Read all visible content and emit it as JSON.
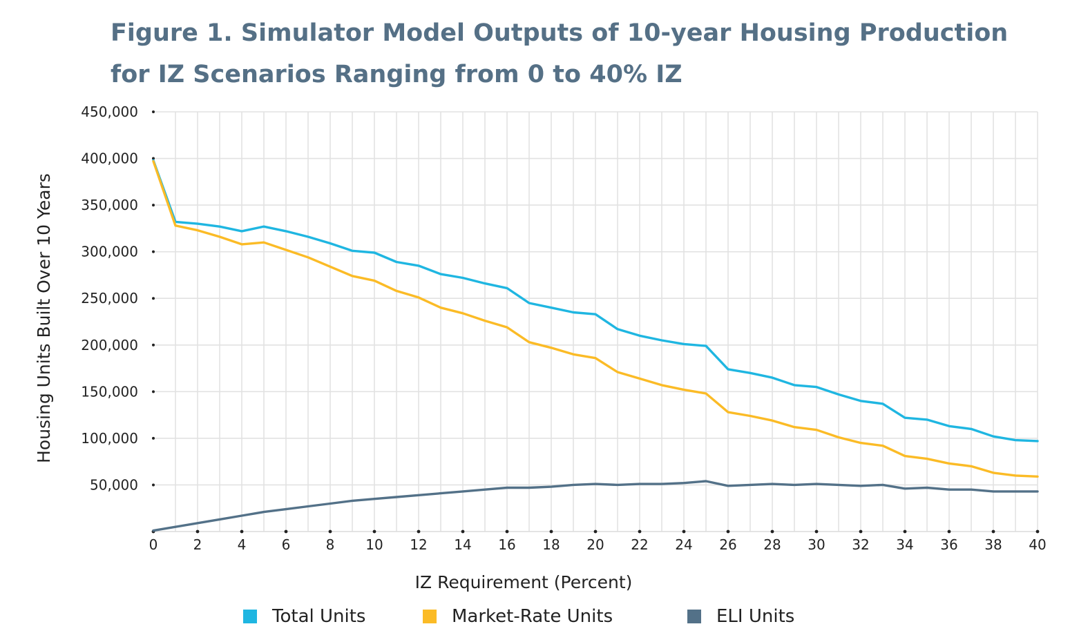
{
  "title": {
    "line1": "Figure 1. Simulator Model Outputs of 10-year Housing Production",
    "line2": "for IZ Scenarios Ranging from 0 to 40% IZ"
  },
  "chart_data": {
    "type": "line",
    "xlabel": "IZ Requirement (Percent)",
    "ylabel": "Housing Units  Built Over 10 Years",
    "xlim": [
      0,
      40
    ],
    "ylim": [
      0,
      450000
    ],
    "x_ticks": [
      0,
      2,
      4,
      6,
      8,
      10,
      12,
      14,
      16,
      18,
      20,
      22,
      24,
      26,
      28,
      30,
      32,
      34,
      36,
      38,
      40
    ],
    "x_tick_labels": [
      "0",
      "2",
      "4",
      "6",
      "8",
      "10",
      "12",
      "14",
      "16",
      "18",
      "20",
      "22",
      "24",
      "26",
      "28",
      "30",
      "32",
      "34",
      "36",
      "38",
      "40"
    ],
    "y_ticks": [
      50000,
      100000,
      150000,
      200000,
      250000,
      300000,
      350000,
      400000,
      450000
    ],
    "y_tick_labels": [
      "50,000",
      "100,000",
      "150,000",
      "200,000",
      "250,000",
      "300,000",
      "350,000",
      "400,000",
      "450,000"
    ],
    "grid": true,
    "legend_position": "bottom",
    "x": [
      0,
      1,
      2,
      3,
      4,
      5,
      6,
      7,
      8,
      9,
      10,
      11,
      12,
      13,
      14,
      15,
      16,
      17,
      18,
      19,
      20,
      21,
      22,
      23,
      24,
      25,
      26,
      27,
      28,
      29,
      30,
      31,
      32,
      33,
      34,
      35,
      36,
      37,
      38,
      39,
      40
    ],
    "series": [
      {
        "name": "Total Units",
        "color": "#1fb6e1",
        "values": [
          398000,
          332000,
          330000,
          327000,
          322000,
          327000,
          322000,
          316000,
          309000,
          301000,
          299000,
          289000,
          285000,
          276000,
          272000,
          266000,
          261000,
          245000,
          240000,
          235000,
          233000,
          217000,
          210000,
          205000,
          201000,
          199000,
          174000,
          170000,
          165000,
          157000,
          155000,
          147000,
          140000,
          137000,
          122000,
          120000,
          113000,
          110000,
          102000,
          98000,
          97000
        ]
      },
      {
        "name": "Market-Rate Units",
        "color": "#fbbb26",
        "values": [
          397000,
          328000,
          323000,
          316000,
          308000,
          310000,
          302000,
          294000,
          284000,
          274000,
          269000,
          258000,
          251000,
          240000,
          234000,
          226000,
          219000,
          203000,
          197000,
          190000,
          186000,
          171000,
          164000,
          157000,
          152000,
          148000,
          128000,
          124000,
          119000,
          112000,
          109000,
          101000,
          95000,
          92000,
          81000,
          78000,
          73000,
          70000,
          63000,
          60000,
          59000
        ]
      },
      {
        "name": "ELI Units",
        "color": "#537188",
        "values": [
          1000,
          5000,
          9000,
          13000,
          17000,
          21000,
          24000,
          27000,
          30000,
          33000,
          35000,
          37000,
          39000,
          41000,
          43000,
          45000,
          47000,
          47000,
          48000,
          50000,
          51000,
          50000,
          51000,
          51000,
          52000,
          54000,
          49000,
          50000,
          51000,
          50000,
          51000,
          50000,
          49000,
          50000,
          46000,
          47000,
          45000,
          45000,
          43000,
          43000,
          43000
        ]
      }
    ]
  }
}
